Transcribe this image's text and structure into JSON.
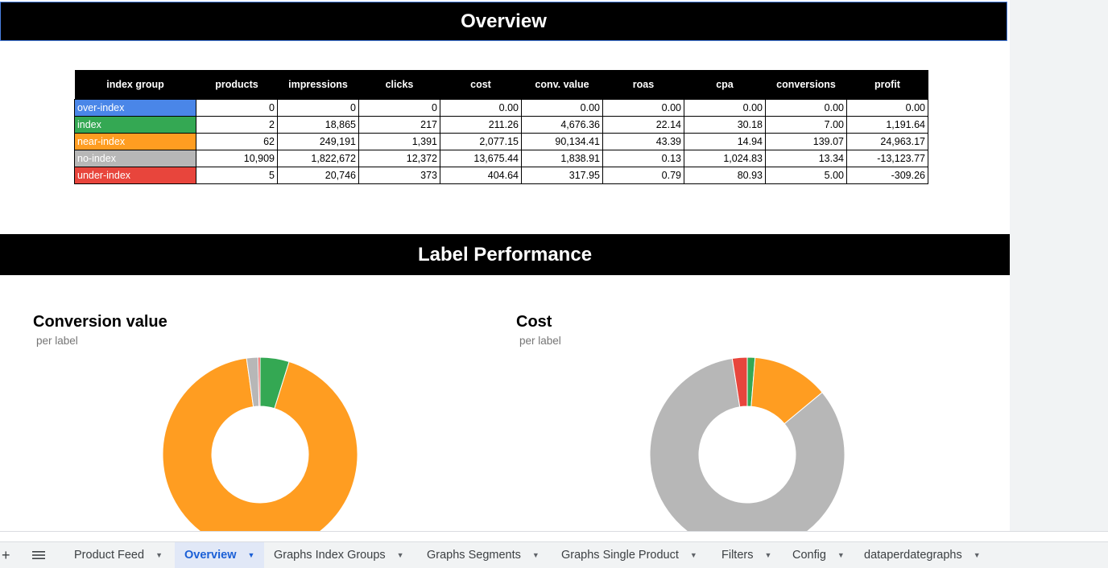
{
  "sections": {
    "overview_title": "Overview",
    "label_performance_title": "Label Performance"
  },
  "table": {
    "headers": [
      "index group",
      "products",
      "impressions",
      "clicks",
      "cost",
      "conv. value",
      "roas",
      "cpa",
      "conversions",
      "profit"
    ],
    "rows": [
      {
        "label": "over-index",
        "color": "#4a86e8",
        "cells": [
          "0",
          "0",
          "0",
          "0.00",
          "0.00",
          "0.00",
          "0.00",
          "0.00",
          "0.00"
        ]
      },
      {
        "label": "index",
        "color": "#34a853",
        "cells": [
          "2",
          "18,865",
          "217",
          "211.26",
          "4,676.36",
          "22.14",
          "30.18",
          "7.00",
          "1,191.64"
        ]
      },
      {
        "label": "near-index",
        "color": "#ff9d21",
        "cells": [
          "62",
          "249,191",
          "1,391",
          "2,077.15",
          "90,134.41",
          "43.39",
          "14.94",
          "139.07",
          "24,963.17"
        ]
      },
      {
        "label": "no-index",
        "color": "#b7b7b7",
        "cells": [
          "10,909",
          "1,822,672",
          "12,372",
          "13,675.44",
          "1,838.91",
          "0.13",
          "1,024.83",
          "13.34",
          "-13,123.77"
        ]
      },
      {
        "label": "under-index",
        "color": "#e8453c",
        "cells": [
          "5",
          "20,746",
          "373",
          "404.64",
          "317.95",
          "0.79",
          "80.93",
          "5.00",
          "-309.26"
        ]
      }
    ]
  },
  "chart_data": [
    {
      "type": "pie",
      "title": "Conversion value",
      "subtitle": "per label",
      "categories": [
        "over-index",
        "index",
        "near-index",
        "no-index",
        "under-index"
      ],
      "values": [
        0.0,
        4676.36,
        90134.41,
        1838.91,
        317.95
      ],
      "colors": [
        "#4a86e8",
        "#34a853",
        "#ff9d21",
        "#b7b7b7",
        "#e8453c"
      ]
    },
    {
      "type": "pie",
      "title": "Cost",
      "subtitle": "per label",
      "categories": [
        "over-index",
        "index",
        "near-index",
        "no-index",
        "under-index"
      ],
      "values": [
        0.0,
        211.26,
        2077.15,
        13675.44,
        404.64
      ],
      "colors": [
        "#4a86e8",
        "#34a853",
        "#ff9d21",
        "#b7b7b7",
        "#e8453c"
      ]
    }
  ],
  "tabbar": {
    "tabs": [
      {
        "label": "Product Feed",
        "active": false
      },
      {
        "label": "Overview",
        "active": true
      },
      {
        "label": "Graphs Index Groups",
        "active": false
      },
      {
        "label": "Graphs Segments",
        "active": false
      },
      {
        "label": "Graphs Single Product",
        "active": false
      },
      {
        "label": "Filters",
        "active": false
      },
      {
        "label": "Config",
        "active": false
      },
      {
        "label": "dataperdategraphs",
        "active": false
      }
    ],
    "add_icon": "plus-icon",
    "all_sheets_icon": "menu-icon"
  }
}
